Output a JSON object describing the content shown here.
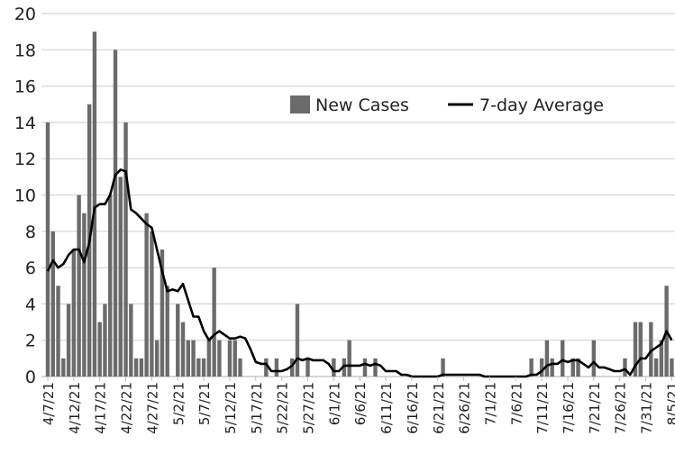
{
  "chart_data": {
    "type": "bar",
    "title": "",
    "xlabel": "",
    "ylabel": "",
    "ylim": [
      0,
      20
    ],
    "yticks": [
      0,
      2,
      4,
      6,
      8,
      10,
      12,
      14,
      16,
      18,
      20
    ],
    "grid": "horizontal",
    "legend_placement": "top-right",
    "x_tick_labels": [
      "4/7/21",
      "4/12/21",
      "4/17/21",
      "4/22/21",
      "4/27/21",
      "5/2/21",
      "5/7/21",
      "5/12/21",
      "5/17/21",
      "5/22/21",
      "5/27/21",
      "6/1/21",
      "6/6/21",
      "6/11/21",
      "6/16/21",
      "6/21/21",
      "6/26/21",
      "7/1/21",
      "7/6/21",
      "7/11/21",
      "7/16/21",
      "7/21/21",
      "7/26/21",
      "7/31/21",
      "8/5/21"
    ],
    "categories": [
      "4/7/21",
      "4/8/21",
      "4/9/21",
      "4/10/21",
      "4/11/21",
      "4/12/21",
      "4/13/21",
      "4/14/21",
      "4/15/21",
      "4/16/21",
      "4/17/21",
      "4/18/21",
      "4/19/21",
      "4/20/21",
      "4/21/21",
      "4/22/21",
      "4/23/21",
      "4/24/21",
      "4/25/21",
      "4/26/21",
      "4/27/21",
      "4/28/21",
      "4/29/21",
      "4/30/21",
      "5/1/21",
      "5/2/21",
      "5/3/21",
      "5/4/21",
      "5/5/21",
      "5/6/21",
      "5/7/21",
      "5/8/21",
      "5/9/21",
      "5/10/21",
      "5/11/21",
      "5/12/21",
      "5/13/21",
      "5/14/21",
      "5/15/21",
      "5/16/21",
      "5/17/21",
      "5/18/21",
      "5/19/21",
      "5/20/21",
      "5/21/21",
      "5/22/21",
      "5/23/21",
      "5/24/21",
      "5/25/21",
      "5/26/21",
      "5/27/21",
      "5/28/21",
      "5/29/21",
      "5/30/21",
      "5/31/21",
      "6/1/21",
      "6/2/21",
      "6/3/21",
      "6/4/21",
      "6/5/21",
      "6/6/21",
      "6/7/21",
      "6/8/21",
      "6/9/21",
      "6/10/21",
      "6/11/21",
      "6/12/21",
      "6/13/21",
      "6/14/21",
      "6/15/21",
      "6/16/21",
      "6/17/21",
      "6/18/21",
      "6/19/21",
      "6/20/21",
      "6/21/21",
      "6/22/21",
      "6/23/21",
      "6/24/21",
      "6/25/21",
      "6/26/21",
      "6/27/21",
      "6/28/21",
      "6/29/21",
      "6/30/21",
      "7/1/21",
      "7/2/21",
      "7/3/21",
      "7/4/21",
      "7/5/21",
      "7/6/21",
      "7/7/21",
      "7/8/21",
      "7/9/21",
      "7/10/21",
      "7/11/21",
      "7/12/21",
      "7/13/21",
      "7/14/21",
      "7/15/21",
      "7/16/21",
      "7/17/21",
      "7/18/21",
      "7/19/21",
      "7/20/21",
      "7/21/21",
      "7/22/21",
      "7/23/21",
      "7/24/21",
      "7/25/21",
      "7/26/21",
      "7/27/21",
      "7/28/21",
      "7/29/21",
      "7/30/21",
      "7/31/21",
      "8/1/21",
      "8/2/21",
      "8/3/21",
      "8/4/21",
      "8/5/21"
    ],
    "series": [
      {
        "name": "New Cases",
        "kind": "bar",
        "color": "#6b6b6b",
        "values": [
          14,
          8,
          5,
          1,
          4,
          7,
          10,
          9,
          15,
          19,
          3,
          4,
          10,
          18,
          11,
          14,
          4,
          1,
          1,
          9,
          8,
          2,
          7,
          5,
          0,
          4,
          3,
          2,
          2,
          1,
          1,
          2,
          6,
          2,
          0,
          2,
          2,
          1,
          0,
          0,
          0,
          0,
          1,
          0,
          1,
          0,
          0,
          1,
          4,
          0,
          1,
          0,
          0,
          0,
          0,
          1,
          0,
          1,
          2,
          0,
          0,
          1,
          0,
          1,
          0,
          0,
          0,
          0,
          0,
          0,
          0,
          0,
          0,
          0,
          0,
          0,
          1,
          0,
          0,
          0,
          0,
          0,
          0,
          0,
          0,
          0,
          0,
          0,
          0,
          0,
          0,
          0,
          0,
          1,
          0,
          1,
          2,
          1,
          0,
          2,
          0,
          1,
          1,
          0,
          0,
          2,
          0,
          0,
          0,
          0,
          0,
          1,
          0,
          3,
          3,
          0,
          3,
          1,
          2,
          5,
          1
        ]
      },
      {
        "name": "7-day Average",
        "kind": "line",
        "color": "#000000",
        "values": [
          5.8,
          6.4,
          6.0,
          6.2,
          6.7,
          7.0,
          7.0,
          6.3,
          7.4,
          9.3,
          9.5,
          9.5,
          10.0,
          11.1,
          11.4,
          11.3,
          9.2,
          9.0,
          8.7,
          8.4,
          8.2,
          7.0,
          5.8,
          4.7,
          4.8,
          4.7,
          5.1,
          4.2,
          3.3,
          3.3,
          2.5,
          2.0,
          2.3,
          2.5,
          2.3,
          2.1,
          2.1,
          2.2,
          2.1,
          1.5,
          0.8,
          0.7,
          0.7,
          0.3,
          0.3,
          0.3,
          0.4,
          0.6,
          1.0,
          0.9,
          1.0,
          0.9,
          0.9,
          0.9,
          0.7,
          0.3,
          0.3,
          0.6,
          0.6,
          0.6,
          0.6,
          0.7,
          0.6,
          0.7,
          0.6,
          0.3,
          0.3,
          0.3,
          0.1,
          0.1,
          0,
          0,
          0,
          0,
          0,
          0,
          0.1,
          0.1,
          0.1,
          0.1,
          0.1,
          0.1,
          0.1,
          0.1,
          0,
          0,
          0,
          0,
          0,
          0,
          0,
          0,
          0,
          0.1,
          0.1,
          0.3,
          0.6,
          0.7,
          0.7,
          0.9,
          0.8,
          0.9,
          0.9,
          0.7,
          0.5,
          0.8,
          0.5,
          0.5,
          0.4,
          0.3,
          0.3,
          0.4,
          0.1,
          0.6,
          1.0,
          1.0,
          1.4,
          1.6,
          1.8,
          2.5,
          2.0
        ]
      }
    ],
    "gridline_color": "#d4d4d4"
  }
}
